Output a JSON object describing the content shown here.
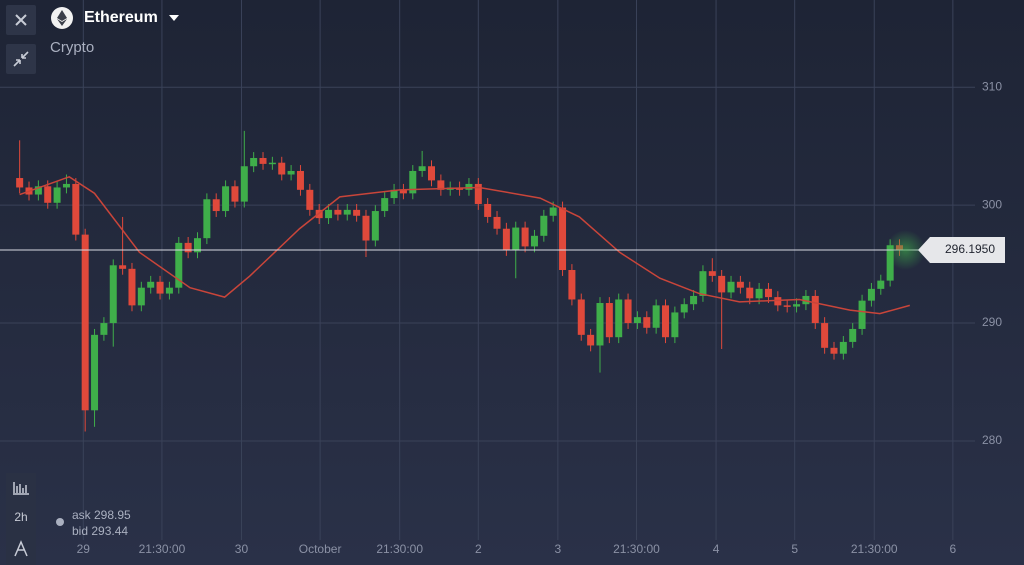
{
  "header": {
    "asset": "Ethereum",
    "category": "Crypto"
  },
  "quote": {
    "ask": "ask 298.95",
    "bid": "bid 293.44"
  },
  "toolbar": {
    "timeframe": "2h"
  },
  "chart_data": {
    "type": "candlestick",
    "up_color": "#3fae4a",
    "down_color": "#e0493b",
    "x": [
      0,
      1,
      2,
      3,
      4,
      5,
      6,
      7,
      8,
      9,
      10,
      11,
      12,
      13,
      14,
      15,
      16,
      17,
      18,
      19,
      20,
      21,
      22,
      23,
      24,
      25,
      26,
      27,
      28,
      29,
      30,
      31,
      32,
      33,
      34,
      35,
      36,
      37,
      38,
      39,
      40,
      41,
      42,
      43,
      44,
      45,
      46,
      47,
      48,
      49,
      50,
      51,
      52,
      53,
      54,
      55,
      56,
      57,
      58,
      59,
      60,
      61,
      62,
      63,
      64,
      65,
      66,
      67,
      68,
      69,
      70,
      71,
      72,
      73,
      74,
      75,
      76,
      77,
      78,
      79,
      80,
      81,
      82,
      83,
      84,
      85,
      86,
      87,
      88,
      89,
      90,
      91,
      92,
      93,
      94
    ],
    "open": [
      302.3,
      301.5,
      300.9,
      301.6,
      300.2,
      301.5,
      301.8,
      297.5,
      282.6,
      289.0,
      290,
      294.9,
      294.6,
      291.5,
      293,
      293.5,
      292.5,
      293,
      296.8,
      296,
      297.2,
      300.5,
      299.5,
      301.6,
      300.3,
      303.3,
      304,
      303.5,
      303.6,
      302.6,
      302.9,
      301.3,
      299.6,
      298.9,
      299.6,
      299.2,
      299.6,
      299.1,
      297,
      299.5,
      300.6,
      301.3,
      301,
      302.9,
      303.3,
      302.1,
      301.3,
      301.5,
      301.3,
      301.8,
      300.1,
      299,
      298,
      296.2,
      298.1,
      296.5,
      297.4,
      299.1,
      299.8,
      294.5,
      292,
      289,
      288.1,
      291.7,
      288.8,
      292,
      290,
      290.5,
      289.6,
      291.5,
      288.8,
      290.9,
      291.6,
      292.3,
      294.4,
      294,
      292.6,
      293.5,
      293,
      292.1,
      292.9,
      292.2,
      291.5,
      291.4,
      291.6,
      292.3,
      290,
      287.9,
      287.4,
      288.4,
      289.5,
      291.9,
      292.9,
      293.6,
      296.6
    ],
    "high": [
      305.5,
      302.0,
      302.1,
      302.1,
      302.0,
      302.6,
      302.3,
      298.0,
      289.5,
      290.5,
      295.4,
      299.0,
      295.1,
      293.5,
      294.0,
      294.0,
      293.5,
      297.3,
      297.3,
      297.7,
      301.0,
      301.0,
      302.1,
      302.1,
      306.3,
      304.5,
      304.5,
      304.1,
      304.1,
      303.4,
      303.4,
      301.8,
      300.1,
      300.1,
      300.1,
      300.1,
      300.1,
      299.6,
      300.0,
      301.1,
      301.8,
      301.8,
      303.4,
      304.6,
      303.8,
      302.6,
      302.0,
      302.0,
      302.3,
      302.3,
      300.6,
      299.5,
      298.5,
      298.6,
      298.6,
      297.9,
      299.6,
      300.3,
      300.3,
      295.0,
      292.5,
      289.5,
      292.2,
      292.2,
      292.5,
      292.5,
      291.0,
      291.0,
      292.0,
      292.0,
      291.4,
      292.1,
      292.8,
      294.9,
      295.5,
      294.5,
      294.0,
      294.0,
      293.5,
      293.4,
      293.4,
      292.7,
      292.0,
      292.1,
      292.8,
      292.8,
      290.5,
      288.4,
      288.9,
      290.0,
      292.4,
      293.4,
      294.1,
      297.1,
      297.1
    ],
    "low": [
      301.0,
      300.4,
      300.4,
      299.7,
      299.7,
      301.0,
      297.0,
      280.8,
      281.2,
      288.5,
      288.0,
      294.1,
      291.0,
      291.0,
      292.5,
      292.0,
      292.0,
      292.5,
      295.5,
      295.5,
      296.7,
      299.0,
      299.0,
      299.8,
      299.8,
      302.8,
      303.0,
      303.0,
      302.1,
      302.1,
      300.8,
      299.1,
      298.4,
      298.4,
      298.7,
      298.7,
      298.6,
      295.6,
      296.5,
      299.0,
      300.1,
      300.5,
      300.5,
      302.4,
      301.6,
      300.8,
      300.8,
      300.8,
      300.8,
      299.6,
      298.5,
      297.5,
      295.7,
      293.8,
      296.0,
      296.0,
      296.9,
      298.6,
      294.0,
      291.5,
      288.5,
      287.6,
      285.8,
      288.3,
      288.3,
      289.5,
      289.5,
      289.1,
      289.1,
      288.3,
      288.3,
      290.4,
      291.1,
      291.8,
      293.5,
      287.8,
      292.1,
      292.5,
      291.6,
      291.6,
      291.7,
      291.0,
      290.9,
      290.9,
      291.1,
      289.5,
      287.4,
      286.9,
      286.9,
      287.9,
      289.0,
      291.4,
      292.4,
      293.1,
      295.7
    ],
    "close": [
      301.5,
      300.9,
      301.6,
      300.2,
      301.5,
      301.8,
      297.5,
      282.6,
      289.0,
      290,
      294.9,
      294.6,
      291.5,
      293,
      293.5,
      292.5,
      293,
      296.8,
      296,
      297.2,
      300.5,
      299.5,
      301.6,
      300.3,
      303.3,
      304,
      303.5,
      303.6,
      302.6,
      302.9,
      301.3,
      299.6,
      298.9,
      299.6,
      299.2,
      299.6,
      299.1,
      297,
      299.5,
      300.6,
      301.3,
      301,
      302.9,
      303.3,
      302.1,
      301.3,
      301.5,
      301.3,
      301.8,
      300.1,
      299,
      298,
      296.2,
      298.1,
      296.5,
      297.4,
      299.1,
      299.8,
      294.5,
      292,
      289,
      288.1,
      291.7,
      288.8,
      292,
      290,
      290.5,
      289.6,
      291.5,
      288.8,
      290.9,
      291.6,
      292.3,
      294.4,
      294,
      292.6,
      293.5,
      293,
      292.1,
      292.9,
      292.2,
      291.5,
      291.4,
      291.6,
      292.3,
      290,
      287.9,
      287.4,
      288.4,
      289.5,
      291.9,
      292.9,
      293.6,
      296.6,
      296.2
    ],
    "moving_average": {
      "color": "#c9453a",
      "x": [
        0,
        5.3,
        8.0,
        12.8,
        18.2,
        21.9,
        24.6,
        29.9,
        34.2,
        40.6,
        49.1,
        55.6,
        59.8,
        64.1,
        68.4,
        72.6,
        76.9,
        83.3,
        88.7,
        91.9,
        95.1
      ],
      "values": [
        300.9,
        302.4,
        301,
        296,
        293,
        292.2,
        294,
        298,
        300.7,
        301.3,
        301.5,
        300.6,
        299,
        296,
        293.8,
        292.5,
        291.8,
        292,
        291.1,
        290.8,
        291.5
      ]
    },
    "current_price": {
      "value": 296.195,
      "label": "296.1950"
    },
    "xlim": [
      -2.1,
      107.3
    ],
    "xticks": [
      {
        "value": 6.8,
        "label": "29"
      },
      {
        "value": 15.2,
        "label": "21:30:00"
      },
      {
        "value": 23.7,
        "label": "30"
      },
      {
        "value": 32.1,
        "label": "October"
      },
      {
        "value": 40.6,
        "label": "21:30:00"
      },
      {
        "value": 49.0,
        "label": "2"
      },
      {
        "value": 57.5,
        "label": "3"
      },
      {
        "value": 65.9,
        "label": "21:30:00"
      },
      {
        "value": 74.4,
        "label": "4"
      },
      {
        "value": 82.8,
        "label": "5"
      },
      {
        "value": 91.3,
        "label": "21:30:00"
      },
      {
        "value": 99.7,
        "label": "6"
      }
    ],
    "ylim": [
      271.6,
      317.4
    ],
    "yticks": [
      280,
      290,
      300,
      310
    ],
    "grid": true
  }
}
